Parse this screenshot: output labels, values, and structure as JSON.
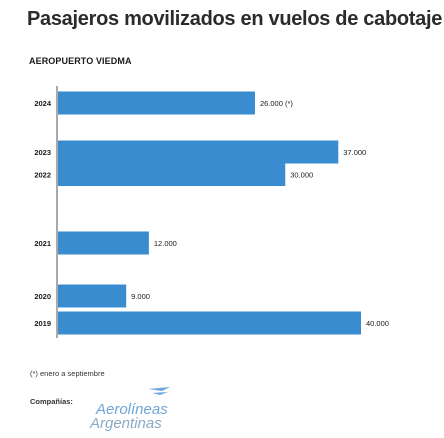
{
  "header": {
    "title": "Pasajeros movilizados en vuelos de cabotaje",
    "subtitle": "AEROPUERTO VIEDMA"
  },
  "footnote": "(*) enero a septiembre",
  "companies": {
    "label": "Compañías:",
    "logo_line1": "Aerolíneas",
    "logo_line2": "Argentinas",
    "logo_color": "#6ea5d8"
  },
  "colors": {
    "bar": "#3a8cd0",
    "axis": "#555555"
  },
  "chart_data": {
    "type": "bar",
    "orientation": "horizontal",
    "title": "Pasajeros movilizados en vuelos de cabotaje",
    "subtitle": "AEROPUERTO VIEDMA",
    "categories": [
      "2024",
      "2023",
      "2022",
      "2021",
      "2020",
      "2019"
    ],
    "values": [
      26000,
      37000,
      30000,
      12000,
      9000,
      40000
    ],
    "data_labels": [
      "26.000 (*)",
      "37.000",
      "30.000",
      "12.000",
      "9.000",
      "40.000"
    ],
    "xlim": [
      0,
      40000
    ],
    "grid": false
  }
}
